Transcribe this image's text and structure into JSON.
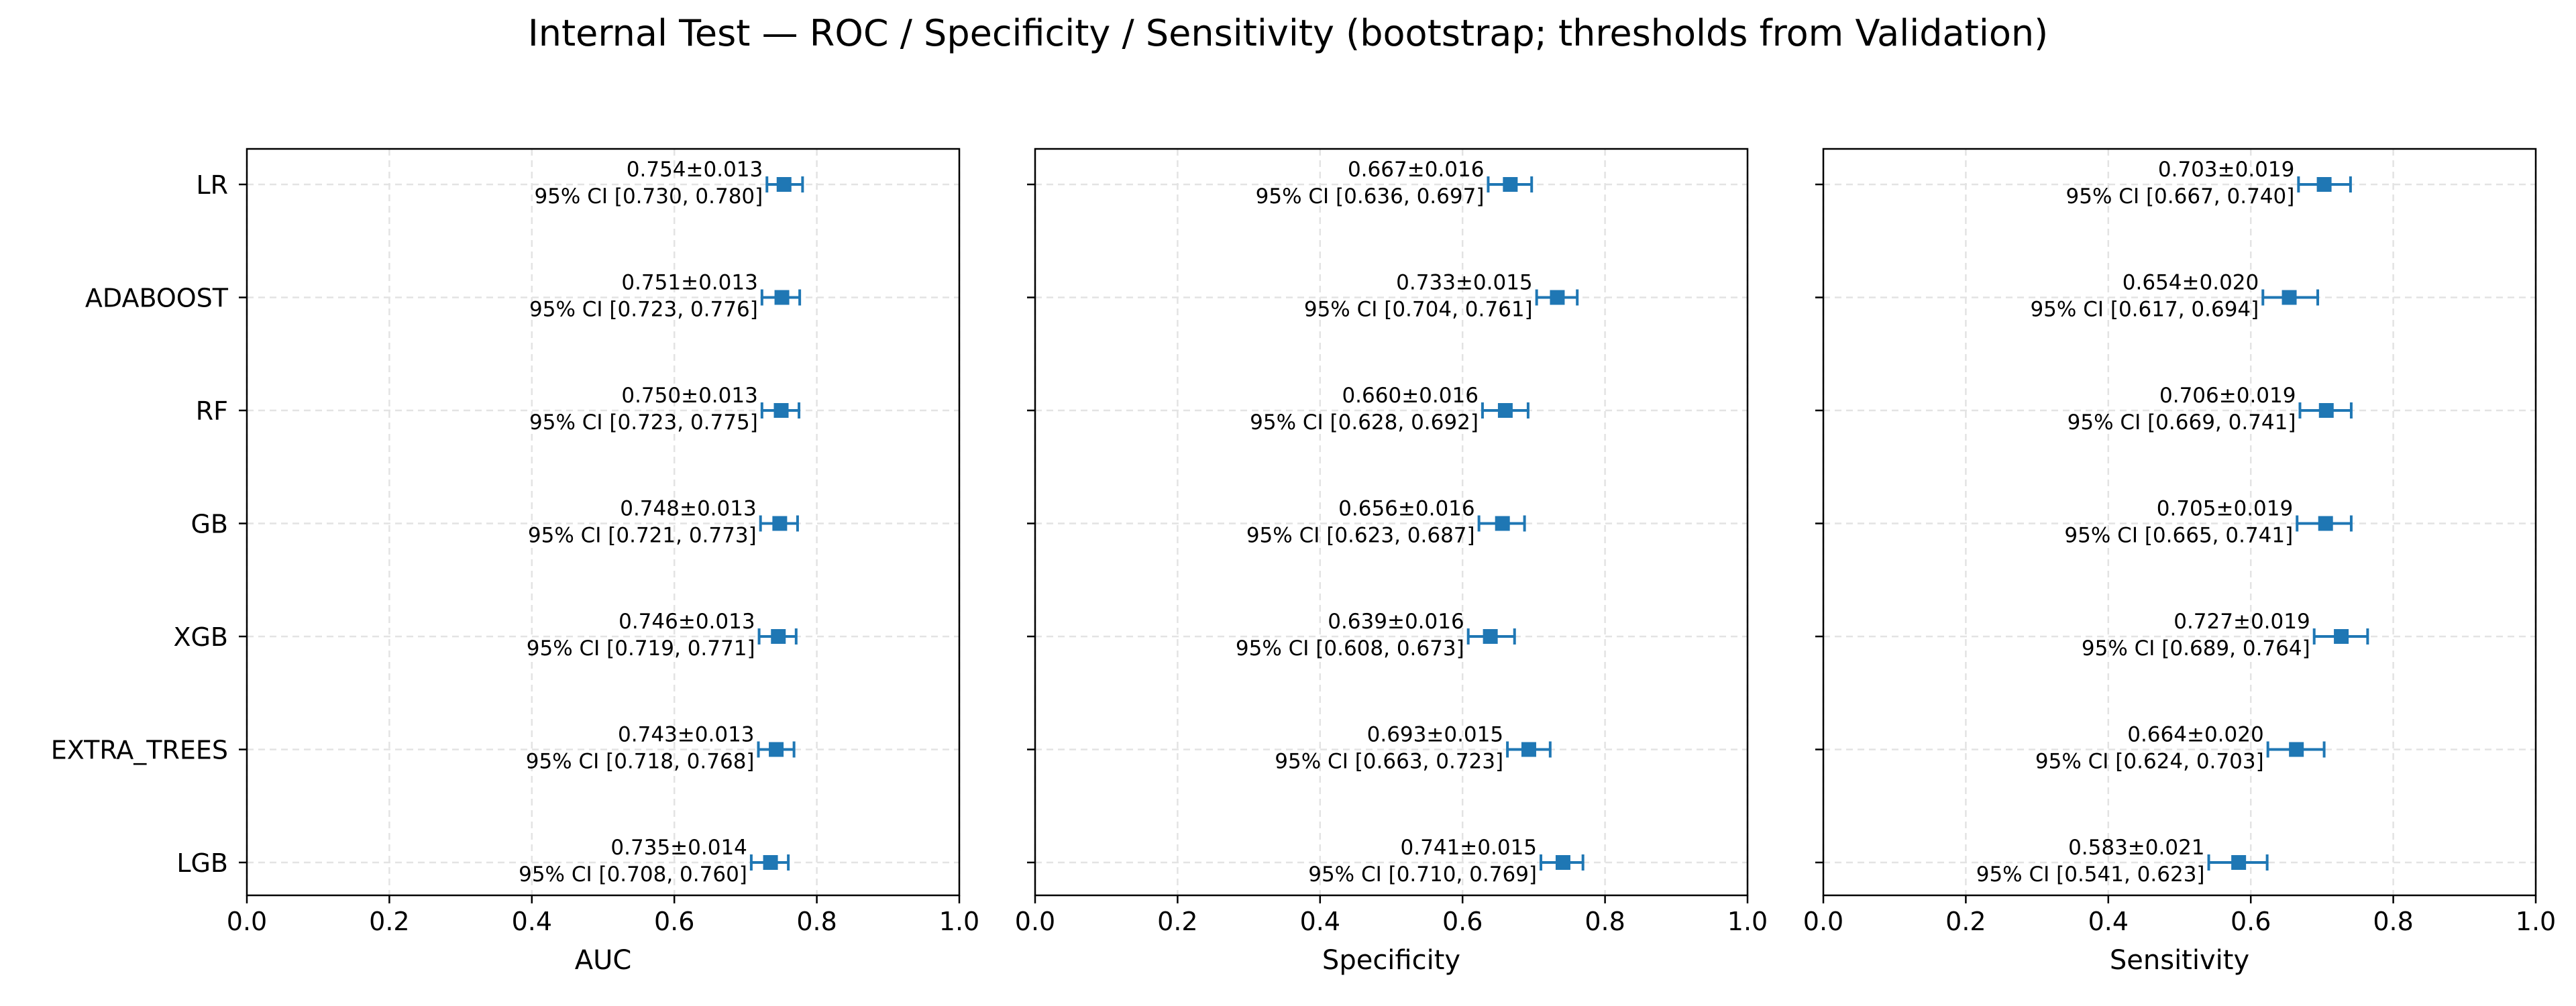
{
  "figure": {
    "title": "Internal Test — ROC / Specificity / Sensitivity (bootstrap; thresholds from Validation)"
  },
  "chart_data": [
    {
      "type": "forest",
      "xlabel": "AUC",
      "xlim": [
        0.0,
        1.0
      ],
      "xticks": [
        "0.0",
        "0.2",
        "0.4",
        "0.6",
        "0.8",
        "1.0"
      ],
      "grid": true,
      "categories": [
        "LR",
        "ADABOOST",
        "RF",
        "GB",
        "XGB",
        "EXTRA_TREES",
        "LGB"
      ],
      "points": [
        {
          "model": "LR",
          "mean": 0.754,
          "ci_low": 0.73,
          "ci_high": 0.78,
          "label": "0.754±0.013",
          "ci_label": "95% CI [0.730, 0.780]"
        },
        {
          "model": "ADABOOST",
          "mean": 0.751,
          "ci_low": 0.723,
          "ci_high": 0.776,
          "label": "0.751±0.013",
          "ci_label": "95% CI [0.723, 0.776]"
        },
        {
          "model": "RF",
          "mean": 0.75,
          "ci_low": 0.723,
          "ci_high": 0.775,
          "label": "0.750±0.013",
          "ci_label": "95% CI [0.723, 0.775]"
        },
        {
          "model": "GB",
          "mean": 0.748,
          "ci_low": 0.721,
          "ci_high": 0.773,
          "label": "0.748±0.013",
          "ci_label": "95% CI [0.721, 0.773]"
        },
        {
          "model": "XGB",
          "mean": 0.746,
          "ci_low": 0.719,
          "ci_high": 0.771,
          "label": "0.746±0.013",
          "ci_label": "95% CI [0.719, 0.771]"
        },
        {
          "model": "EXTRA_TREES",
          "mean": 0.743,
          "ci_low": 0.718,
          "ci_high": 0.768,
          "label": "0.743±0.013",
          "ci_label": "95% CI [0.718, 0.768]"
        },
        {
          "model": "LGB",
          "mean": 0.735,
          "ci_low": 0.708,
          "ci_high": 0.76,
          "label": "0.735±0.014",
          "ci_label": "95% CI [0.708, 0.760]"
        }
      ]
    },
    {
      "type": "forest",
      "xlabel": "Specificity",
      "xlim": [
        0.0,
        1.0
      ],
      "xticks": [
        "0.0",
        "0.2",
        "0.4",
        "0.6",
        "0.8",
        "1.0"
      ],
      "grid": true,
      "categories": [
        "LR",
        "ADABOOST",
        "RF",
        "GB",
        "XGB",
        "EXTRA_TREES",
        "LGB"
      ],
      "points": [
        {
          "model": "LR",
          "mean": 0.667,
          "ci_low": 0.636,
          "ci_high": 0.697,
          "label": "0.667±0.016",
          "ci_label": "95% CI [0.636, 0.697]"
        },
        {
          "model": "ADABOOST",
          "mean": 0.733,
          "ci_low": 0.704,
          "ci_high": 0.761,
          "label": "0.733±0.015",
          "ci_label": "95% CI [0.704, 0.761]"
        },
        {
          "model": "RF",
          "mean": 0.66,
          "ci_low": 0.628,
          "ci_high": 0.692,
          "label": "0.660±0.016",
          "ci_label": "95% CI [0.628, 0.692]"
        },
        {
          "model": "GB",
          "mean": 0.656,
          "ci_low": 0.623,
          "ci_high": 0.687,
          "label": "0.656±0.016",
          "ci_label": "95% CI [0.623, 0.687]"
        },
        {
          "model": "XGB",
          "mean": 0.639,
          "ci_low": 0.608,
          "ci_high": 0.673,
          "label": "0.639±0.016",
          "ci_label": "95% CI [0.608, 0.673]"
        },
        {
          "model": "EXTRA_TREES",
          "mean": 0.693,
          "ci_low": 0.663,
          "ci_high": 0.723,
          "label": "0.693±0.015",
          "ci_label": "95% CI [0.663, 0.723]"
        },
        {
          "model": "LGB",
          "mean": 0.741,
          "ci_low": 0.71,
          "ci_high": 0.769,
          "label": "0.741±0.015",
          "ci_label": "95% CI [0.710, 0.769]"
        }
      ]
    },
    {
      "type": "forest",
      "xlabel": "Sensitivity",
      "xlim": [
        0.0,
        1.0
      ],
      "xticks": [
        "0.0",
        "0.2",
        "0.4",
        "0.6",
        "0.8",
        "1.0"
      ],
      "grid": true,
      "categories": [
        "LR",
        "ADABOOST",
        "RF",
        "GB",
        "XGB",
        "EXTRA_TREES",
        "LGB"
      ],
      "points": [
        {
          "model": "LR",
          "mean": 0.703,
          "ci_low": 0.667,
          "ci_high": 0.74,
          "label": "0.703±0.019",
          "ci_label": "95% CI [0.667, 0.740]"
        },
        {
          "model": "ADABOOST",
          "mean": 0.654,
          "ci_low": 0.617,
          "ci_high": 0.694,
          "label": "0.654±0.020",
          "ci_label": "95% CI [0.617, 0.694]"
        },
        {
          "model": "RF",
          "mean": 0.706,
          "ci_low": 0.669,
          "ci_high": 0.741,
          "label": "0.706±0.019",
          "ci_label": "95% CI [0.669, 0.741]"
        },
        {
          "model": "GB",
          "mean": 0.705,
          "ci_low": 0.665,
          "ci_high": 0.741,
          "label": "0.705±0.019",
          "ci_label": "95% CI [0.665, 0.741]"
        },
        {
          "model": "XGB",
          "mean": 0.727,
          "ci_low": 0.689,
          "ci_high": 0.764,
          "label": "0.727±0.019",
          "ci_label": "95% CI [0.689, 0.764]"
        },
        {
          "model": "EXTRA_TREES",
          "mean": 0.664,
          "ci_low": 0.624,
          "ci_high": 0.703,
          "label": "0.664±0.020",
          "ci_label": "95% CI [0.624, 0.703]"
        },
        {
          "model": "LGB",
          "mean": 0.583,
          "ci_low": 0.541,
          "ci_high": 0.623,
          "label": "0.583±0.021",
          "ci_label": "95% CI [0.541, 0.623]"
        }
      ]
    }
  ],
  "colors": {
    "marker": "#1f77b4",
    "grid": "#e3e3e3",
    "axis": "#000000",
    "text": "#000000"
  }
}
